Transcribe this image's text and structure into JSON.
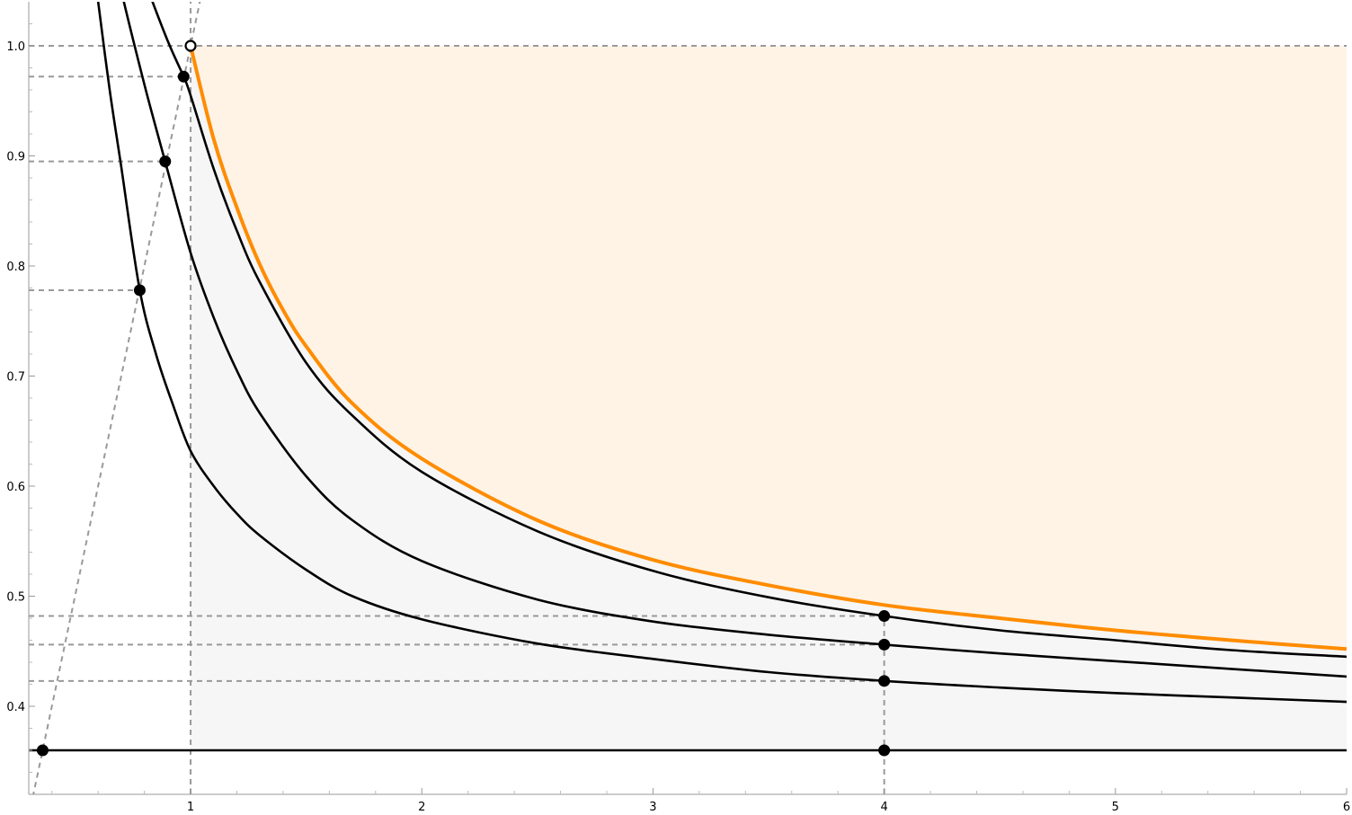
{
  "chart_data": {
    "type": "line",
    "title": "",
    "xlabel": "",
    "ylabel": "",
    "xlim": [
      0.3,
      6.0
    ],
    "ylim": [
      0.32,
      1.04
    ],
    "grid": false,
    "legend": "none",
    "x_ticks": [
      "1",
      "2",
      "3",
      "4",
      "5",
      "6"
    ],
    "x_tick_values": [
      1,
      2,
      3,
      4,
      5,
      6
    ],
    "y_ticks": [
      "0.4",
      "0.5",
      "0.6",
      "0.7",
      "0.8",
      "0.9",
      "1.0"
    ],
    "y_tick_values": [
      0.4,
      0.5,
      0.6,
      0.7,
      0.8,
      0.9,
      1.0
    ],
    "series": [
      {
        "color": "#ff8c00",
        "x": [
          1.0,
          1.1,
          1.2,
          1.3,
          1.4,
          1.5,
          1.7,
          2.0,
          2.5,
          3.0,
          3.5,
          4.0,
          4.5,
          5.0,
          5.5,
          6.0
        ],
        "y": [
          1.0,
          0.915,
          0.853,
          0.801,
          0.76,
          0.727,
          0.675,
          0.625,
          0.569,
          0.533,
          0.51,
          0.492,
          0.48,
          0.469,
          0.46,
          0.452
        ]
      },
      {
        "color": "#000000",
        "x": [
          0.7,
          0.8,
          0.9,
          0.97,
          1.0,
          1.1,
          1.2,
          1.3,
          1.5,
          1.7,
          2.0,
          2.5,
          3.0,
          3.5,
          4.0,
          4.5,
          5.0,
          5.5,
          6.0
        ],
        "y": [
          1.12,
          1.06,
          1.005,
          0.972,
          0.955,
          0.888,
          0.832,
          0.785,
          0.712,
          0.664,
          0.613,
          0.559,
          0.523,
          0.499,
          0.482,
          0.469,
          0.46,
          0.451,
          0.445
        ]
      },
      {
        "color": "#000000",
        "x": [
          0.65,
          0.7,
          0.8,
          0.89,
          1.0,
          1.1,
          1.2,
          1.3,
          1.5,
          1.7,
          2.0,
          2.5,
          3.0,
          3.5,
          4.0,
          4.5,
          5.0,
          5.5,
          6.0
        ],
        "y": [
          1.1,
          1.05,
          0.965,
          0.895,
          0.812,
          0.753,
          0.705,
          0.666,
          0.609,
          0.569,
          0.532,
          0.497,
          0.477,
          0.465,
          0.456,
          0.448,
          0.441,
          0.434,
          0.427
        ]
      },
      {
        "color": "#000000",
        "x": [
          0.6,
          0.65,
          0.7,
          0.78,
          0.85,
          0.92,
          1.0,
          1.1,
          1.2,
          1.3,
          1.5,
          1.7,
          2.0,
          2.5,
          3.0,
          3.5,
          4.0,
          4.5,
          5.0,
          5.5,
          6.0
        ],
        "y": [
          1.04,
          0.96,
          0.89,
          0.778,
          0.72,
          0.676,
          0.632,
          0.6,
          0.575,
          0.555,
          0.524,
          0.5,
          0.479,
          0.457,
          0.443,
          0.431,
          0.423,
          0.417,
          0.412,
          0.408,
          0.404
        ]
      },
      {
        "color": "#000000",
        "x": [
          0.3,
          6.0
        ],
        "y": [
          0.36,
          0.36
        ]
      }
    ],
    "guide_lines": {
      "color": "#999999",
      "horizontal": [
        {
          "y": 1.0,
          "x_from": 0.3,
          "x_to": 6.0
        },
        {
          "y": 0.972,
          "x_from": 0.3,
          "x_to": 0.97
        },
        {
          "y": 0.895,
          "x_from": 0.3,
          "x_to": 0.89
        },
        {
          "y": 0.778,
          "x_from": 0.3,
          "x_to": 0.78
        },
        {
          "y": 0.482,
          "x_from": 0.3,
          "x_to": 4.0
        },
        {
          "y": 0.456,
          "x_from": 0.3,
          "x_to": 4.0
        },
        {
          "y": 0.423,
          "x_from": 0.3,
          "x_to": 4.0
        }
      ],
      "vertical": [
        {
          "x": 1.0,
          "y_from": 0.32,
          "y_to": 1.04
        },
        {
          "x": 4.0,
          "y_from": 0.32,
          "y_to": 0.482
        }
      ],
      "diagonal": [
        {
          "x1": 0.3,
          "y1": 0.3,
          "x2": 1.04,
          "y2": 1.04
        }
      ]
    },
    "points": [
      {
        "x": 1.0,
        "y": 1.0,
        "open": true
      },
      {
        "x": 0.97,
        "y": 0.972,
        "open": false
      },
      {
        "x": 0.89,
        "y": 0.895,
        "open": false
      },
      {
        "x": 0.78,
        "y": 0.778,
        "open": false
      },
      {
        "x": 0.36,
        "y": 0.36,
        "open": false
      },
      {
        "x": 4.0,
        "y": 0.482,
        "open": false
      },
      {
        "x": 4.0,
        "y": 0.456,
        "open": false
      },
      {
        "x": 4.0,
        "y": 0.423,
        "open": false
      },
      {
        "x": 4.0,
        "y": 0.36,
        "open": false
      }
    ],
    "regions": [
      {
        "name": "feasible",
        "color": "#f6f6f6"
      },
      {
        "name": "upper",
        "color": "#fff3e6"
      }
    ]
  }
}
